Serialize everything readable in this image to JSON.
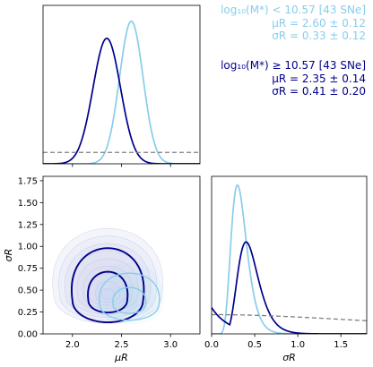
{
  "figure": {
    "legend_low": [
      "log₁₀(M*) < 10.57 [43 SNe]",
      "μR = 2.60 ± 0.12",
      "σR = 0.33 ± 0.12"
    ],
    "legend_high": [
      "log₁₀(M*) ≥ 10.57 [43 SNe]",
      "μR = 2.35 ± 0.14",
      "σR = 0.41 ± 0.20"
    ]
  },
  "colors": {
    "low_mass": "#87CEEB",
    "high_mass": "#00008B",
    "prior": "#808080",
    "contour_fill": "#d8dcef"
  },
  "chart_data": [
    {
      "type": "line",
      "panel": "mu_R marginal (top-left)",
      "x_range": [
        1.7,
        3.3
      ],
      "xticks": [
        2.0,
        2.5,
        3.0
      ],
      "xtick_labels_shown": false,
      "yticks_shown": false,
      "series": [
        {
          "group": "low_mass",
          "kind": "gaussian",
          "mean": 2.6,
          "sigma": 0.12,
          "relative_peak": 1.0
        },
        {
          "group": "high_mass",
          "kind": "gaussian",
          "mean": 2.35,
          "sigma": 0.14,
          "relative_peak": 0.88
        },
        {
          "group": "prior",
          "kind": "flat",
          "relative_level": 0.08,
          "dashed": true
        }
      ]
    },
    {
      "type": "contour",
      "panel": "joint (bottom-left)",
      "xlabel": "μR",
      "ylabel": "σR",
      "x_range": [
        1.7,
        3.3
      ],
      "y_range": [
        0.0,
        1.8
      ],
      "xticks": [
        2.0,
        2.5,
        3.0
      ],
      "yticks": [
        0.0,
        0.25,
        0.5,
        0.75,
        1.0,
        1.25,
        1.5,
        1.75
      ],
      "ytick_labels": [
        "0.00",
        "0.25",
        "0.50",
        "0.75",
        "1.00",
        "1.25",
        "1.50",
        "1.75"
      ],
      "series": [
        {
          "group": "high_mass",
          "center": [
            2.36,
            0.38
          ],
          "levels": [
            0.39,
            0.86
          ]
        },
        {
          "group": "low_mass",
          "center": [
            2.58,
            0.33
          ],
          "levels": [
            0.39,
            0.86
          ]
        }
      ]
    },
    {
      "type": "line",
      "panel": "sigma_R marginal (bottom-right)",
      "xlabel": "σR",
      "x_range": [
        0.0,
        1.8
      ],
      "xticks": [
        0.0,
        0.5,
        1.0,
        1.5
      ],
      "xtick_labels": [
        "0.0",
        "0.5",
        "1.0",
        "1.5"
      ],
      "y_range": [
        0.0,
        1.8
      ],
      "yticks_shown": false,
      "series": [
        {
          "group": "low_mass",
          "kind": "peaked",
          "mode": 0.3,
          "peak_height": 1.7
        },
        {
          "group": "high_mass",
          "kind": "peaked",
          "mode": 0.4,
          "peak_height": 1.05
        },
        {
          "group": "prior",
          "kind": "half_cauchy",
          "value_at_zero": 0.22,
          "value_at_1_8": 0.15,
          "dashed": true
        }
      ]
    }
  ]
}
